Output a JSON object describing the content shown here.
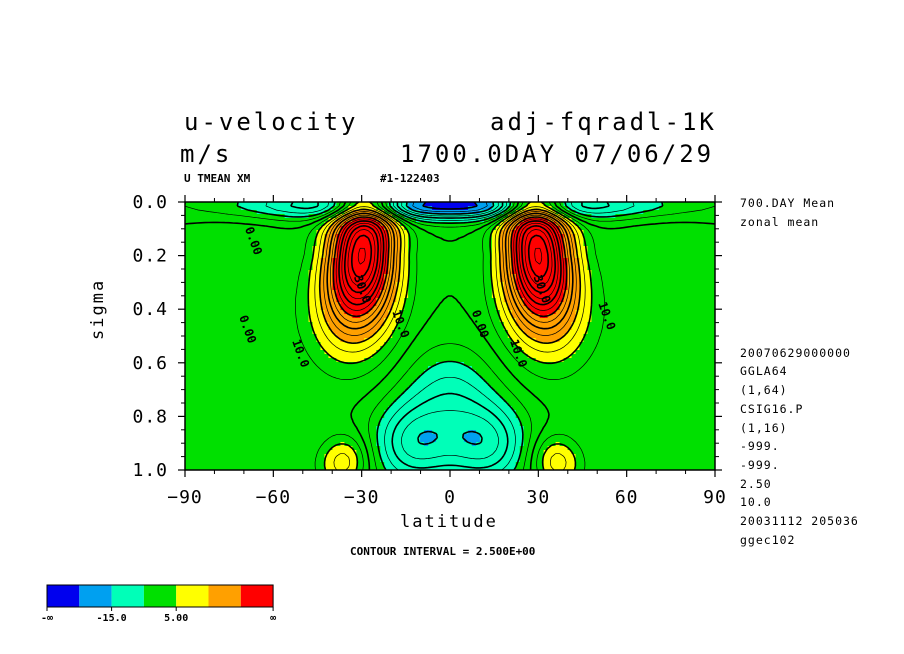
{
  "header": {
    "variable": "u-velocity",
    "experiment": "adj-fqradl-1K",
    "units": "m/s",
    "time": "1700.0DAY 07/06/29",
    "var_code": "U TMEAN XM",
    "run_id": "#1-122403"
  },
  "side_info": [
    "700.DAY Mean",
    "zonal mean",
    "20070629000000",
    "GGLA64",
    "(1,64)",
    "CSIG16.P",
    "(1,16)",
    "-999.",
    "-999.",
    "2.50",
    "10.0",
    "20031112 205036",
    "ggec102"
  ],
  "contour_note": "CONTOUR INTERVAL = 2.500E+00",
  "colorbar": {
    "colors": [
      "#0000ee",
      "#00a0f0",
      "#00ffb8",
      "#00e000",
      "#ffff00",
      "#ffa000",
      "#ff0000"
    ],
    "labels": [
      "-∞",
      "-15.0",
      "5.00",
      "∞"
    ]
  },
  "chart_data": {
    "type": "heatmap",
    "title": "u-velocity",
    "xlabel": "latitude",
    "ylabel": "sigma",
    "xlim": [
      -90,
      90
    ],
    "ylim": [
      1.0,
      0.0
    ],
    "xticks": [
      -90,
      -60,
      -30,
      0,
      30,
      60,
      90
    ],
    "yticks": [
      0.0,
      0.2,
      0.4,
      0.6,
      0.8,
      1.0
    ],
    "xtick_labels": [
      "−90",
      "−60",
      "−30",
      "0",
      "30",
      "60",
      "90"
    ],
    "ytick_labels": [
      "0.0",
      "0.2",
      "0.4",
      "0.6",
      "0.8",
      "1.0"
    ],
    "contour_interval": 2.5,
    "contour_labels": [
      {
        "text": "0.00",
        "lat": -68,
        "sigma": 0.15
      },
      {
        "text": "0.00",
        "lat": -70,
        "sigma": 0.48
      },
      {
        "text": "10.0",
        "lat": -52,
        "sigma": 0.57
      },
      {
        "text": "30.0",
        "lat": -31,
        "sigma": 0.33
      },
      {
        "text": "10.0",
        "lat": -18,
        "sigma": 0.46
      },
      {
        "text": "0.00",
        "lat": 9,
        "sigma": 0.46
      },
      {
        "text": "10.0",
        "lat": 22,
        "sigma": 0.57
      },
      {
        "text": "30.0",
        "lat": 30,
        "sigma": 0.33
      },
      {
        "text": "10.0",
        "lat": 52,
        "sigma": 0.43
      }
    ],
    "features": {
      "jet_max": {
        "value": 35,
        "lat": [
          -30,
          30
        ],
        "sigma": 0.2
      },
      "surface_easterlies_min": {
        "value": -10,
        "lat": [
          -15,
          10
        ],
        "sigma": 0.9
      },
      "upper_easterlies_min": {
        "value": -20,
        "lat": 0,
        "sigma": 0.02
      }
    }
  }
}
